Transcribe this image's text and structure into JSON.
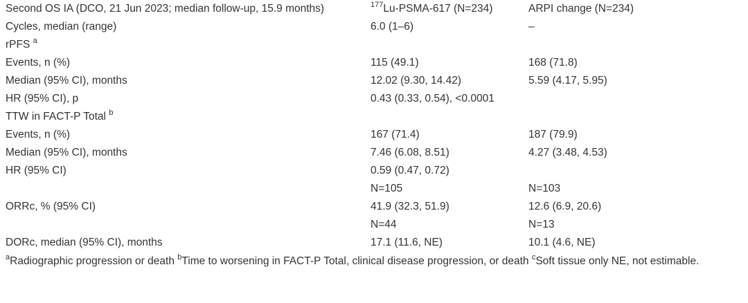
{
  "table": {
    "header": {
      "col1": "Second OS IA (DCO, 21 Jun 2023; median follow-up, 15.9 months)",
      "col2_sup": "177",
      "col2": "Lu-PSMA-617 (N=234)",
      "col3": "ARPI change (N=234)"
    },
    "rows": [
      {
        "label": "Cycles, median (range)",
        "lu": "6.0 (1–6)",
        "arpi": "–"
      },
      {
        "label": "rPFS",
        "label_sup": "a",
        "lu": "",
        "arpi": ""
      },
      {
        "label": "Events, n (%)",
        "lu": "115 (49.1)",
        "arpi": "168 (71.8)"
      },
      {
        "label": "Median (95% CI), months",
        "lu": "12.02 (9.30, 14.42)",
        "arpi": "5.59 (4.17, 5.95)"
      },
      {
        "label": "HR (95% CI), p",
        "lu": "0.43 (0.33, 0.54), <0.0001",
        "arpi": ""
      },
      {
        "label": "TTW in FACT-P Total",
        "label_sup": "b",
        "lu": "",
        "arpi": ""
      },
      {
        "label": "Events, n (%)",
        "lu": "167 (71.4)",
        "arpi": "187 (79.9)"
      },
      {
        "label": "Median (95% CI), months",
        "lu": "7.46 (6.08, 8.51)",
        "arpi": "4.27 (3.48, 4.53)"
      },
      {
        "label": "HR (95% CI)",
        "lu": "0.59 (0.47, 0.72)",
        "arpi": ""
      },
      {
        "label": "",
        "lu": "N=105",
        "arpi": "N=103"
      },
      {
        "label": "ORRc, % (95% CI)",
        "lu": "41.9 (32.3, 51.9)",
        "arpi": "12.6 (6.9, 20.6)"
      },
      {
        "label": "",
        "lu": "N=44",
        "arpi": "N=13"
      },
      {
        "label": "DORc, median (95% CI), months",
        "lu": "17.1 (11.6, NE)",
        "arpi": "10.1 (4.6, NE)"
      }
    ]
  },
  "footnote": {
    "a_mark": "a",
    "a_text": "Radiographic progression or death ",
    "b_mark": "b",
    "b_text": "Time to worsening in FACT-P Total, clinical disease progression, or death ",
    "c_mark": "c",
    "c_text": "Soft tissue only NE, not estimable."
  }
}
